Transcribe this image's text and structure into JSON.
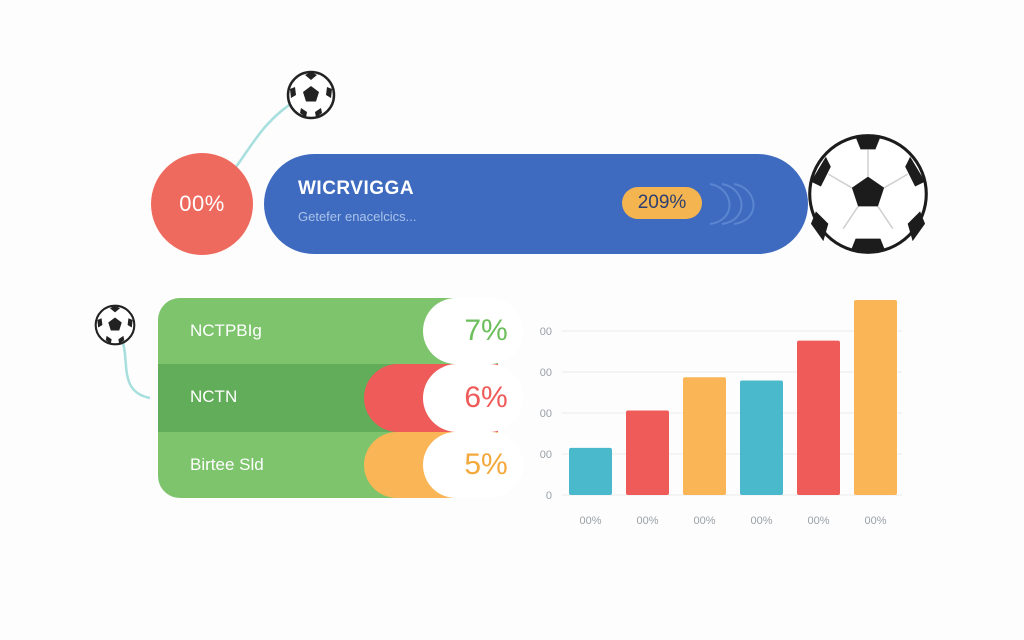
{
  "colors": {
    "blue": "#3e6bbf",
    "coral": "#ef6a5e",
    "green_light": "#7dc46c",
    "green_dark": "#62ad5a",
    "orange": "#fab556",
    "teal": "#4ab9cc",
    "red": "#ee5b58",
    "pill_yellow": "#f4b44f",
    "axis_text": "#9aa0a6",
    "connector": "#a7dede"
  },
  "icons": {
    "ball_small_top": "soccer-ball-icon",
    "ball_large": "soccer-ball-icon",
    "ball_small_left": "soccer-ball-icon"
  },
  "header": {
    "circle_value": "00%",
    "banner_title": "WICRVIGGA",
    "banner_subtitle": "Getefer enacelcics...",
    "banner_pill": "209%"
  },
  "bars_panel": {
    "rows": [
      {
        "label": "NCTPBIg",
        "value": "7%"
      },
      {
        "label": "NCTN",
        "value": "6%"
      },
      {
        "label": "Birtee Sld",
        "value": "5%"
      }
    ]
  },
  "chart_data": {
    "type": "bar",
    "categories": [
      "00%",
      "00%",
      "00%",
      "00%",
      "00%",
      "00%"
    ],
    "values": [
      58,
      104,
      145,
      141,
      190,
      240
    ],
    "colors": [
      "#4ab9cc",
      "#ee5b58",
      "#fab556",
      "#4ab9cc",
      "#ee5b58",
      "#fab556"
    ],
    "yticks": [
      "0",
      "00",
      "00",
      "00",
      "00"
    ],
    "ylim": [
      0,
      240
    ],
    "grid": true,
    "title": "",
    "xlabel": "",
    "ylabel": ""
  }
}
